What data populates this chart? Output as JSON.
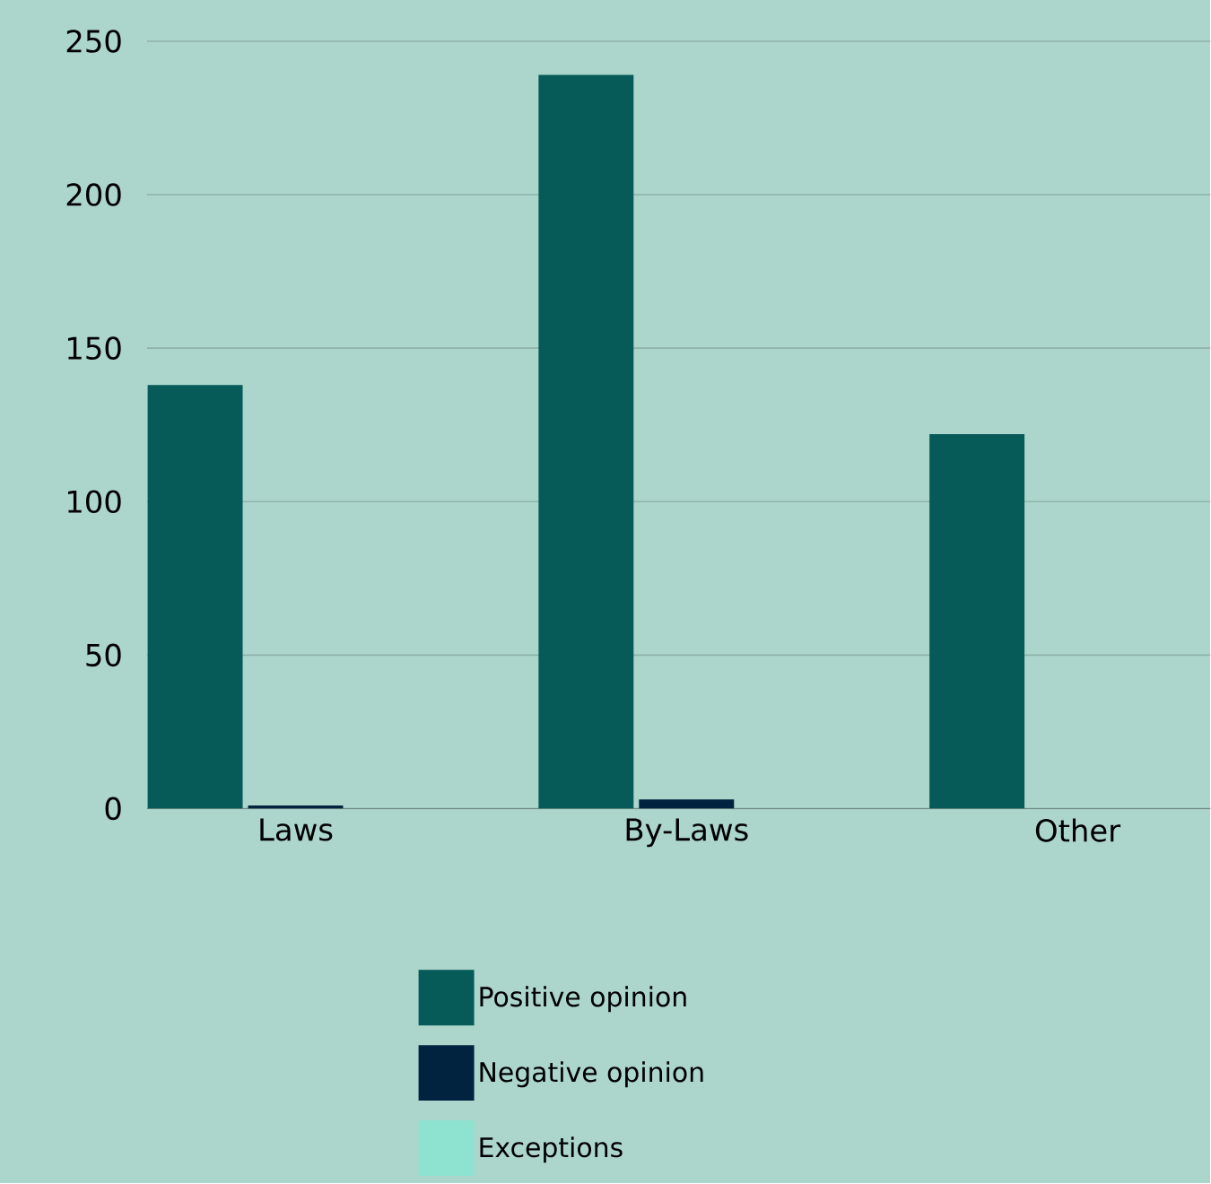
{
  "chart_data": {
    "type": "bar",
    "categories": [
      "Laws",
      "By-Laws",
      "Other"
    ],
    "series": [
      {
        "name": "Positive opinion",
        "color": "#065a58",
        "values": [
          138,
          239,
          122
        ]
      },
      {
        "name": "Negative opinion",
        "color": "#02233f",
        "values": [
          1,
          3,
          0
        ]
      },
      {
        "name": "Exceptions",
        "color": "#8de3d0",
        "values": [
          0,
          0,
          0
        ]
      }
    ],
    "ylim": [
      0,
      250
    ],
    "yticks": [
      0,
      50,
      100,
      150,
      200,
      250
    ],
    "grid": "y",
    "legend": "bottom"
  }
}
